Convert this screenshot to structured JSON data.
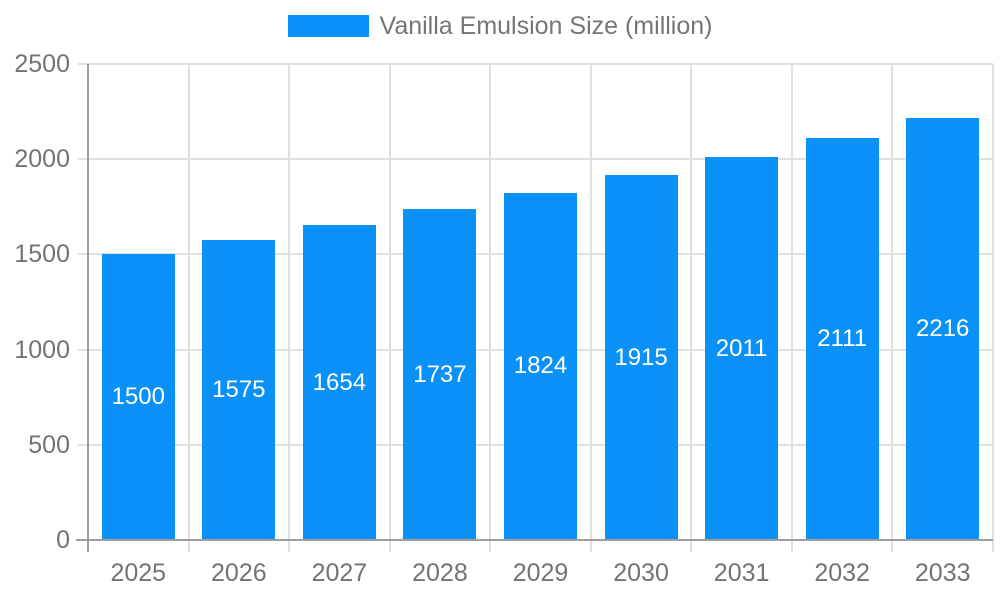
{
  "legend": {
    "label": "Vanilla Emulsion Size (million)"
  },
  "chart_data": {
    "type": "bar",
    "categories": [
      "2025",
      "2026",
      "2027",
      "2028",
      "2029",
      "2030",
      "2031",
      "2032",
      "2033"
    ],
    "values": [
      1500,
      1575,
      1654,
      1737,
      1824,
      1915,
      2011,
      2111,
      2216
    ],
    "series_name": "Vanilla Emulsion Size (million)",
    "title": "",
    "xlabel": "",
    "ylabel": "",
    "ylim": [
      0,
      2500
    ],
    "yticks": [
      0,
      500,
      1000,
      1500,
      2000,
      2500
    ],
    "grid": true,
    "legend_position": "top",
    "value_labels": "inside-center"
  },
  "colors": {
    "bar": "#0a91f8",
    "bar_value_text": "#ffffff",
    "grid_line": "#e0e0e0",
    "axis_line": "#9e9e9e",
    "tick_text": "#737373",
    "legend_text": "#757575",
    "background": "#ffffff"
  }
}
